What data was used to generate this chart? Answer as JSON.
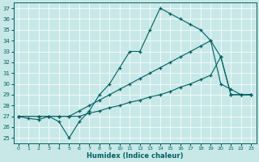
{
  "xlabel": "Humidex (Indice chaleur)",
  "bg_color": "#c8e8e8",
  "line_color": "#006060",
  "xlim": [
    -0.5,
    23.5
  ],
  "ylim": [
    24.5,
    37.5
  ],
  "yticks": [
    25,
    26,
    27,
    28,
    29,
    30,
    31,
    32,
    33,
    34,
    35,
    36,
    37
  ],
  "xticks": [
    0,
    1,
    2,
    3,
    4,
    5,
    6,
    7,
    8,
    9,
    10,
    11,
    12,
    13,
    14,
    15,
    16,
    17,
    18,
    19,
    20,
    21,
    22,
    23
  ],
  "line1_x": [
    0,
    1,
    2,
    3,
    4,
    5,
    6,
    7,
    8,
    9,
    10,
    11,
    12,
    13,
    14,
    15,
    16,
    17,
    18,
    19,
    20,
    21,
    22,
    23
  ],
  "line1_y": [
    27,
    26.8,
    26.7,
    27,
    26.5,
    25,
    26.5,
    27.5,
    29,
    30,
    31.5,
    33,
    33,
    35,
    37,
    36.5,
    36,
    35.5,
    35,
    34,
    30,
    29.5,
    29,
    29
  ],
  "line2_x": [
    0,
    2,
    3,
    4,
    5,
    6,
    7,
    8,
    9,
    10,
    11,
    12,
    13,
    14,
    15,
    16,
    17,
    18,
    19,
    20,
    21,
    22,
    23
  ],
  "line2_y": [
    27,
    27,
    27,
    27,
    27,
    27.5,
    28,
    28.5,
    29,
    29.5,
    30,
    30.5,
    31,
    31.5,
    32,
    32.5,
    33,
    33.5,
    34,
    32.5,
    29,
    29,
    29
  ],
  "line3_x": [
    0,
    2,
    3,
    4,
    5,
    6,
    7,
    8,
    9,
    10,
    11,
    12,
    13,
    14,
    15,
    16,
    17,
    18,
    19,
    20,
    21,
    22,
    23
  ],
  "line3_y": [
    27,
    27,
    27,
    27,
    27,
    27,
    27.3,
    27.5,
    27.8,
    28,
    28.3,
    28.5,
    28.8,
    29,
    29.3,
    29.7,
    30,
    30.4,
    30.8,
    32.5,
    29,
    29,
    29
  ]
}
